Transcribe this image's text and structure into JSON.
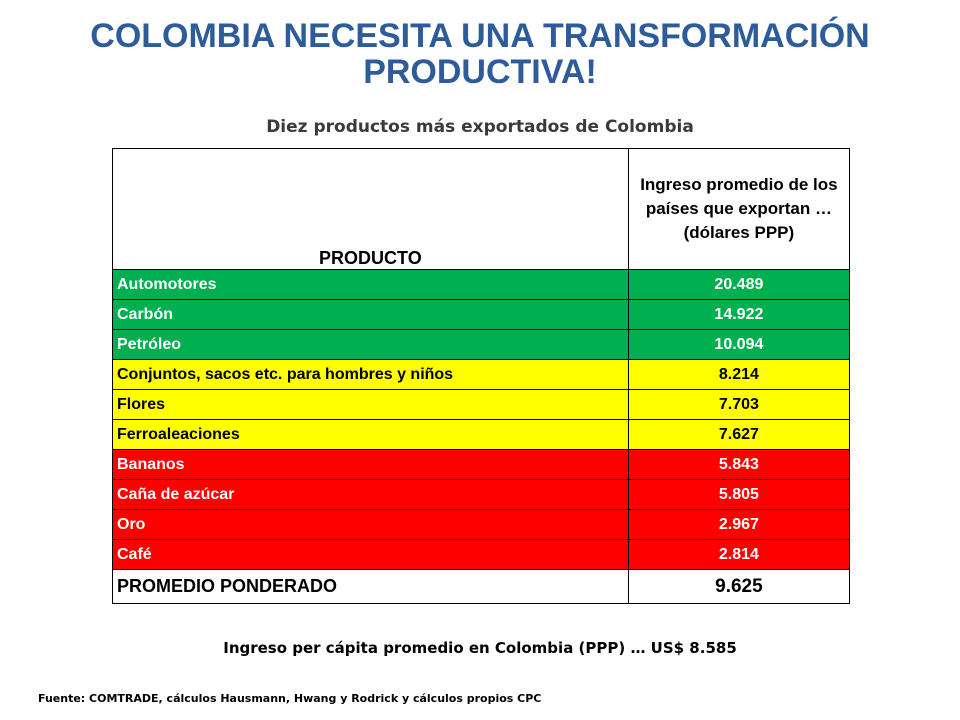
{
  "title": "COLOMBIA NECESITA UNA TRANSFORMACIÓN PRODUCTIVA!",
  "subtitle": "Diez productos más exportados de Colombia",
  "table": {
    "header_product": "PRODUCTO",
    "header_income": "Ingreso promedio de los países que exportan … (dólares PPP)",
    "rows": [
      {
        "product": "Automotores",
        "income": "20.489",
        "color": "#00b050"
      },
      {
        "product": "Carbón",
        "income": "14.922",
        "color": "#00b050"
      },
      {
        "product": "Petróleo",
        "income": "10.094",
        "color": "#00b050"
      },
      {
        "product": "Conjuntos, sacos etc. para hombres y niños",
        "income": "8.214",
        "color": "#ffff00"
      },
      {
        "product": "Flores",
        "income": "7.703",
        "color": "#ffff00"
      },
      {
        "product": "Ferroaleaciones",
        "income": "7.627",
        "color": "#ffff00"
      },
      {
        "product": "Bananos",
        "income": "5.843",
        "color": "#ff0000"
      },
      {
        "product": "Caña de azúcar",
        "income": "5.805",
        "color": "#ff0000"
      },
      {
        "product": "Oro",
        "income": "2.967",
        "color": "#ff0000"
      },
      {
        "product": "Café",
        "income": "2.814",
        "color": "#ff0000"
      }
    ],
    "total_label": "PROMEDIO PONDERADO",
    "total_value": "9.625"
  },
  "note": "Ingreso per cápita promedio en Colombia (PPP) … US$ 8.585",
  "source": "Fuente:  COMTRADE, cálculos Hausmann, Hwang y Rodrick  y cálculos propios CPC"
}
